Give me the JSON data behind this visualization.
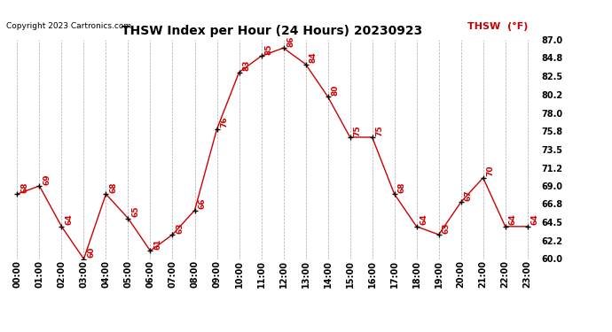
{
  "title": "THSW Index per Hour (24 Hours) 20230923",
  "copyright": "Copyright 2023 Cartronics.com",
  "legend_label": "THSW  (°F)",
  "hours": [
    "00:00",
    "01:00",
    "02:00",
    "03:00",
    "04:00",
    "05:00",
    "06:00",
    "07:00",
    "08:00",
    "09:00",
    "10:00",
    "11:00",
    "12:00",
    "13:00",
    "14:00",
    "15:00",
    "16:00",
    "17:00",
    "18:00",
    "19:00",
    "20:00",
    "21:00",
    "22:00",
    "23:00"
  ],
  "values": [
    68,
    69,
    64,
    60,
    68,
    65,
    61,
    63,
    66,
    76,
    83,
    85,
    86,
    84,
    80,
    75,
    75,
    68,
    64,
    63,
    67,
    70,
    64,
    64
  ],
  "ylim": [
    60.0,
    87.0
  ],
  "yticks": [
    60.0,
    62.2,
    64.5,
    66.8,
    69.0,
    71.2,
    73.5,
    75.8,
    78.0,
    80.2,
    82.5,
    84.8,
    87.0
  ],
  "line_color": "#cc0000",
  "marker_color": "#000000",
  "bg_color": "#ffffff",
  "grid_color": "#aaaaaa",
  "title_color": "#000000",
  "legend_color": "#cc0000",
  "copyright_color": "#000000",
  "label_color": "#cc0000",
  "title_fontsize": 10,
  "copyright_fontsize": 6.5,
  "legend_fontsize": 8,
  "tick_fontsize": 7,
  "label_fontsize": 6.5
}
